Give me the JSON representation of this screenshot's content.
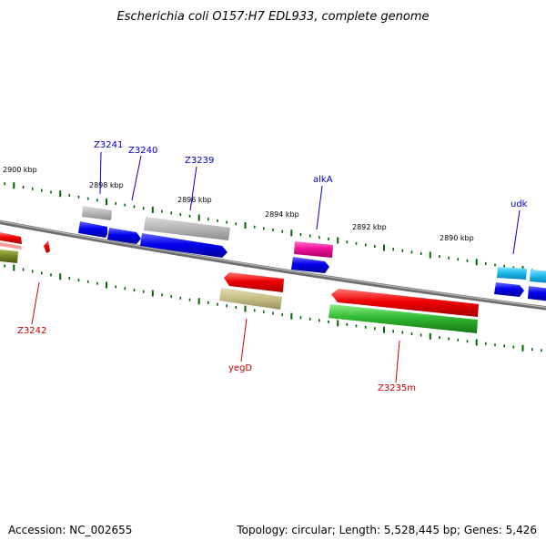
{
  "title": "Escherichia coli O157:H7 EDL933, complete genome",
  "footer": {
    "accession": "Accession: NC_002655",
    "summary": "Topology: circular; Length: 5,528,445 bp; Genes: 5,426"
  },
  "scale": {
    "labels": [
      "2900 kbp",
      "2898 kbp",
      "2896 kbp",
      "2894 kbp",
      "2892 kbp",
      "2890 kbp"
    ]
  },
  "genes": {
    "forward": [
      "Z3241",
      "Z3240",
      "Z3239",
      "alkA",
      "udk"
    ],
    "reverse": [
      "Z3242",
      "yegD",
      "Z3235m"
    ]
  },
  "colors": {
    "backbone": "#808080",
    "forward_label": "#0000cc",
    "reverse_label": "#cc0000",
    "tick": "#006600",
    "blue": "#0000ee",
    "gray": "#b4b4b4",
    "magenta": "#ee1199",
    "cyan": "#22bbee",
    "red": "#ee0000",
    "olive": "#c8c088",
    "green": "#33bb33",
    "darkolive": "#778822"
  }
}
